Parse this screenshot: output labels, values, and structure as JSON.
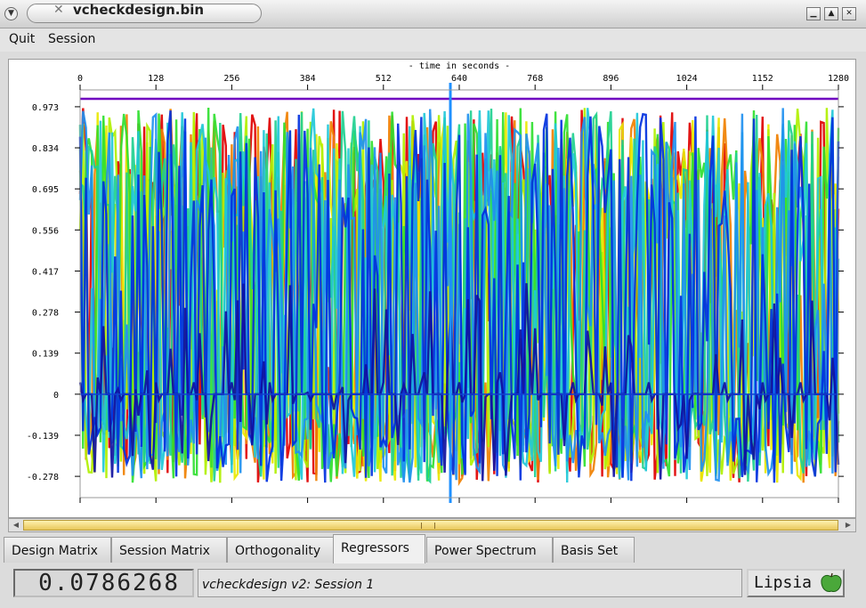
{
  "window": {
    "title": "vcheckdesign.bin"
  },
  "menu": {
    "quit": "Quit",
    "session": "Session"
  },
  "plot": {
    "axis_title": "- time in seconds -",
    "x_ticks": [
      "0",
      "128",
      "256",
      "384",
      "512",
      "640",
      "768",
      "896",
      "1024",
      "1152",
      "1280"
    ],
    "y_ticks": [
      "0.973",
      "0.834",
      "0.695",
      "0.556",
      "0.417",
      "0.278",
      "0.139",
      "0",
      "-0.139",
      "-0.278"
    ],
    "colors": [
      "#e00000",
      "#f08000",
      "#e8e800",
      "#b0f000",
      "#30e030",
      "#20d090",
      "#20c8d8",
      "#2090f0",
      "#0030e0",
      "#1010a0"
    ],
    "constant_color": "#7000c0"
  },
  "chart_data": {
    "type": "line",
    "xlabel": "- time in seconds -",
    "ylabel": "",
    "xlim": [
      0,
      1280
    ],
    "ylim": [
      -0.35,
      1.03
    ],
    "x_ticks": [
      0,
      128,
      256,
      384,
      512,
      640,
      768,
      896,
      1024,
      1152,
      1280
    ],
    "y_ticks": [
      0.973,
      0.834,
      0.695,
      0.556,
      0.417,
      0.278,
      0.139,
      0,
      -0.139,
      -0.278
    ],
    "series": [
      {
        "values": [
          1.0,
          1.0
        ]
      }
    ],
    "legend": "none",
    "grid": false
  },
  "tabs": [
    {
      "label": "Design Matrix"
    },
    {
      "label": "Session Matrix"
    },
    {
      "label": "Orthogonality"
    },
    {
      "label": "Regressors"
    },
    {
      "label": "Power Spectrum"
    },
    {
      "label": "Basis Set"
    }
  ],
  "status": {
    "value": "0.0786268",
    "message": "vcheckdesign v2: Session 1",
    "logo_text": "Lipsia"
  }
}
